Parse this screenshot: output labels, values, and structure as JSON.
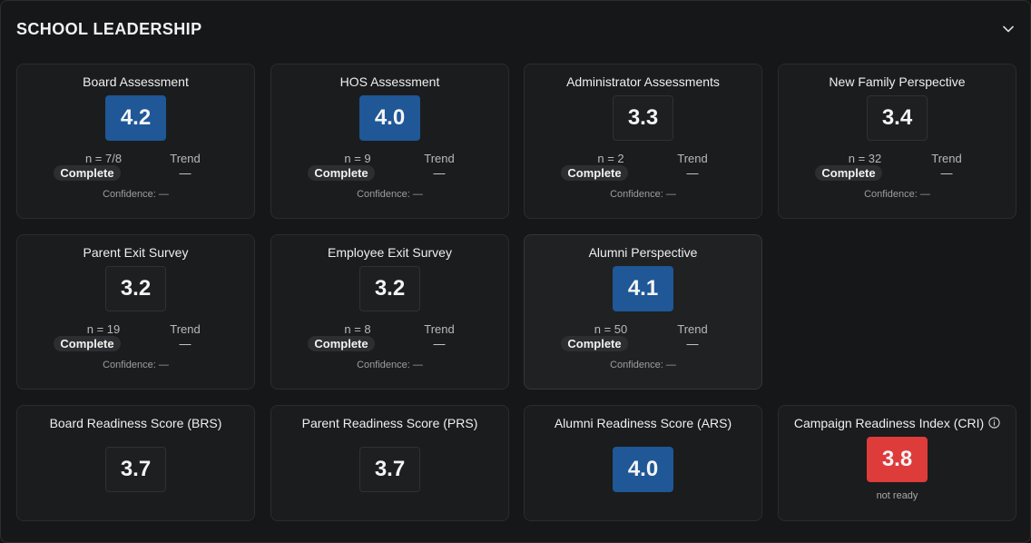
{
  "panel": {
    "title": "SCHOOL LEADERSHIP",
    "collapse_icon": "chevron-down-icon"
  },
  "metrics": [
    {
      "title": "Board Assessment",
      "score": "4.2",
      "score_color": "blue",
      "n": "n = 7/8",
      "status": "Complete",
      "trend_label": "Trend",
      "trend": "—",
      "confidence": "Confidence: —"
    },
    {
      "title": "HOS Assessment",
      "score": "4.0",
      "score_color": "blue",
      "n": "n = 9",
      "status": "Complete",
      "trend_label": "Trend",
      "trend": "—",
      "confidence": "Confidence: —"
    },
    {
      "title": "Administrator Assessments",
      "score": "3.3",
      "score_color": "neutral",
      "n": "n = 2",
      "status": "Complete",
      "trend_label": "Trend",
      "trend": "—",
      "confidence": "Confidence: —"
    },
    {
      "title": "New Family Perspective",
      "score": "3.4",
      "score_color": "neutral",
      "n": "n = 32",
      "status": "Complete",
      "trend_label": "Trend",
      "trend": "—",
      "confidence": "Confidence: —"
    },
    {
      "title": "Parent Exit Survey",
      "score": "3.2",
      "score_color": "neutral",
      "n": "n = 19",
      "status": "Complete",
      "trend_label": "Trend",
      "trend": "—",
      "confidence": "Confidence: —"
    },
    {
      "title": "Employee Exit Survey",
      "score": "3.2",
      "score_color": "neutral",
      "n": "n = 8",
      "status": "Complete",
      "trend_label": "Trend",
      "trend": "—",
      "confidence": "Confidence: —"
    },
    {
      "title": "Alumni Perspective",
      "score": "4.1",
      "score_color": "blue",
      "n": "n = 50",
      "status": "Complete",
      "trend_label": "Trend",
      "trend": "—",
      "confidence": "Confidence: —"
    }
  ],
  "readiness": [
    {
      "title": "Board Readiness Score (BRS)",
      "score": "3.7",
      "score_color": "neutral"
    },
    {
      "title": "Parent Readiness Score (PRS)",
      "score": "3.7",
      "score_color": "neutral"
    },
    {
      "title": "Alumni Readiness Score (ARS)",
      "score": "4.0",
      "score_color": "blue"
    },
    {
      "title": "Campaign Readiness Index (CRI)",
      "score": "3.8",
      "score_color": "red",
      "status": "not ready",
      "info_icon": "info-icon"
    }
  ],
  "colors": {
    "blue": "#1f5797",
    "red": "#de3b3b",
    "neutral": "#1e1f21"
  }
}
